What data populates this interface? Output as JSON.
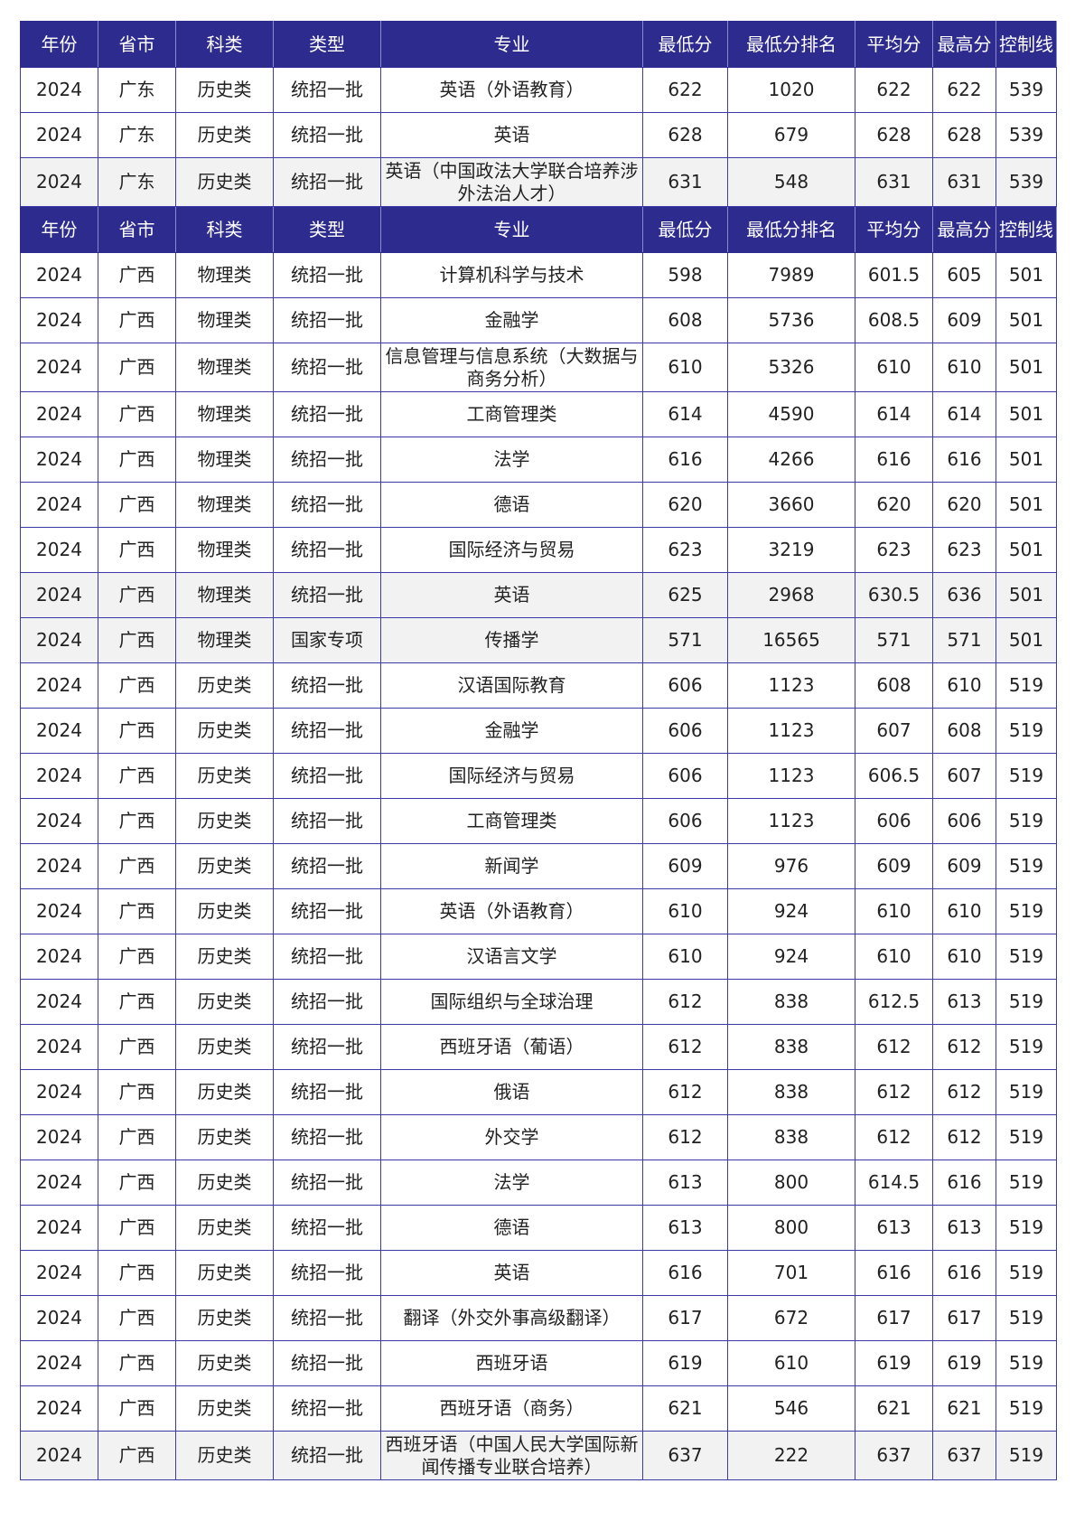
{
  "headers": [
    "年份",
    "省市",
    "科类",
    "类型",
    "专业",
    "最低分",
    "最低分排名",
    "平均分",
    "最高分",
    "控制线"
  ],
  "colors": {
    "header_bg": "#2e2b8f",
    "header_text": "#ffffff",
    "border": "#3b3aa6",
    "shaded_row": "#f2f2f2"
  },
  "sections": [
    {
      "rows": [
        {
          "year": "2024",
          "province": "广东",
          "subject": "历史类",
          "type": "统招一批",
          "major": "英语（外语教育）",
          "min_score": "622",
          "min_rank": "1020",
          "avg_score": "622",
          "max_score": "622",
          "control_line": "539",
          "shaded": false
        },
        {
          "year": "2024",
          "province": "广东",
          "subject": "历史类",
          "type": "统招一批",
          "major": "英语",
          "min_score": "628",
          "min_rank": "679",
          "avg_score": "628",
          "max_score": "628",
          "control_line": "539",
          "shaded": false
        },
        {
          "year": "2024",
          "province": "广东",
          "subject": "历史类",
          "type": "统招一批",
          "major": "英语（中国政法大学联合培养涉外法治人才）",
          "min_score": "631",
          "min_rank": "548",
          "avg_score": "631",
          "max_score": "631",
          "control_line": "539",
          "shaded": true
        }
      ]
    },
    {
      "rows": [
        {
          "year": "2024",
          "province": "广西",
          "subject": "物理类",
          "type": "统招一批",
          "major": "计算机科学与技术",
          "min_score": "598",
          "min_rank": "7989",
          "avg_score": "601.5",
          "max_score": "605",
          "control_line": "501",
          "shaded": false
        },
        {
          "year": "2024",
          "province": "广西",
          "subject": "物理类",
          "type": "统招一批",
          "major": "金融学",
          "min_score": "608",
          "min_rank": "5736",
          "avg_score": "608.5",
          "max_score": "609",
          "control_line": "501",
          "shaded": false
        },
        {
          "year": "2024",
          "province": "广西",
          "subject": "物理类",
          "type": "统招一批",
          "major": "信息管理与信息系统（大数据与商务分析）",
          "min_score": "610",
          "min_rank": "5326",
          "avg_score": "610",
          "max_score": "610",
          "control_line": "501",
          "shaded": false
        },
        {
          "year": "2024",
          "province": "广西",
          "subject": "物理类",
          "type": "统招一批",
          "major": "工商管理类",
          "min_score": "614",
          "min_rank": "4590",
          "avg_score": "614",
          "max_score": "614",
          "control_line": "501",
          "shaded": false
        },
        {
          "year": "2024",
          "province": "广西",
          "subject": "物理类",
          "type": "统招一批",
          "major": "法学",
          "min_score": "616",
          "min_rank": "4266",
          "avg_score": "616",
          "max_score": "616",
          "control_line": "501",
          "shaded": false
        },
        {
          "year": "2024",
          "province": "广西",
          "subject": "物理类",
          "type": "统招一批",
          "major": "德语",
          "min_score": "620",
          "min_rank": "3660",
          "avg_score": "620",
          "max_score": "620",
          "control_line": "501",
          "shaded": false
        },
        {
          "year": "2024",
          "province": "广西",
          "subject": "物理类",
          "type": "统招一批",
          "major": "国际经济与贸易",
          "min_score": "623",
          "min_rank": "3219",
          "avg_score": "623",
          "max_score": "623",
          "control_line": "501",
          "shaded": false
        },
        {
          "year": "2024",
          "province": "广西",
          "subject": "物理类",
          "type": "统招一批",
          "major": "英语",
          "min_score": "625",
          "min_rank": "2968",
          "avg_score": "630.5",
          "max_score": "636",
          "control_line": "501",
          "shaded": true
        },
        {
          "year": "2024",
          "province": "广西",
          "subject": "物理类",
          "type": "国家专项",
          "major": "传播学",
          "min_score": "571",
          "min_rank": "16565",
          "avg_score": "571",
          "max_score": "571",
          "control_line": "501",
          "shaded": true
        },
        {
          "year": "2024",
          "province": "广西",
          "subject": "历史类",
          "type": "统招一批",
          "major": "汉语国际教育",
          "min_score": "606",
          "min_rank": "1123",
          "avg_score": "608",
          "max_score": "610",
          "control_line": "519",
          "shaded": false
        },
        {
          "year": "2024",
          "province": "广西",
          "subject": "历史类",
          "type": "统招一批",
          "major": "金融学",
          "min_score": "606",
          "min_rank": "1123",
          "avg_score": "607",
          "max_score": "608",
          "control_line": "519",
          "shaded": false
        },
        {
          "year": "2024",
          "province": "广西",
          "subject": "历史类",
          "type": "统招一批",
          "major": "国际经济与贸易",
          "min_score": "606",
          "min_rank": "1123",
          "avg_score": "606.5",
          "max_score": "607",
          "control_line": "519",
          "shaded": false
        },
        {
          "year": "2024",
          "province": "广西",
          "subject": "历史类",
          "type": "统招一批",
          "major": "工商管理类",
          "min_score": "606",
          "min_rank": "1123",
          "avg_score": "606",
          "max_score": "606",
          "control_line": "519",
          "shaded": false
        },
        {
          "year": "2024",
          "province": "广西",
          "subject": "历史类",
          "type": "统招一批",
          "major": "新闻学",
          "min_score": "609",
          "min_rank": "976",
          "avg_score": "609",
          "max_score": "609",
          "control_line": "519",
          "shaded": false
        },
        {
          "year": "2024",
          "province": "广西",
          "subject": "历史类",
          "type": "统招一批",
          "major": "英语（外语教育）",
          "min_score": "610",
          "min_rank": "924",
          "avg_score": "610",
          "max_score": "610",
          "control_line": "519",
          "shaded": false
        },
        {
          "year": "2024",
          "province": "广西",
          "subject": "历史类",
          "type": "统招一批",
          "major": "汉语言文学",
          "min_score": "610",
          "min_rank": "924",
          "avg_score": "610",
          "max_score": "610",
          "control_line": "519",
          "shaded": false
        },
        {
          "year": "2024",
          "province": "广西",
          "subject": "历史类",
          "type": "统招一批",
          "major": "国际组织与全球治理",
          "min_score": "612",
          "min_rank": "838",
          "avg_score": "612.5",
          "max_score": "613",
          "control_line": "519",
          "shaded": false
        },
        {
          "year": "2024",
          "province": "广西",
          "subject": "历史类",
          "type": "统招一批",
          "major": "西班牙语（葡语）",
          "min_score": "612",
          "min_rank": "838",
          "avg_score": "612",
          "max_score": "612",
          "control_line": "519",
          "shaded": false
        },
        {
          "year": "2024",
          "province": "广西",
          "subject": "历史类",
          "type": "统招一批",
          "major": "俄语",
          "min_score": "612",
          "min_rank": "838",
          "avg_score": "612",
          "max_score": "612",
          "control_line": "519",
          "shaded": false
        },
        {
          "year": "2024",
          "province": "广西",
          "subject": "历史类",
          "type": "统招一批",
          "major": "外交学",
          "min_score": "612",
          "min_rank": "838",
          "avg_score": "612",
          "max_score": "612",
          "control_line": "519",
          "shaded": false
        },
        {
          "year": "2024",
          "province": "广西",
          "subject": "历史类",
          "type": "统招一批",
          "major": "法学",
          "min_score": "613",
          "min_rank": "800",
          "avg_score": "614.5",
          "max_score": "616",
          "control_line": "519",
          "shaded": false
        },
        {
          "year": "2024",
          "province": "广西",
          "subject": "历史类",
          "type": "统招一批",
          "major": "德语",
          "min_score": "613",
          "min_rank": "800",
          "avg_score": "613",
          "max_score": "613",
          "control_line": "519",
          "shaded": false
        },
        {
          "year": "2024",
          "province": "广西",
          "subject": "历史类",
          "type": "统招一批",
          "major": "英语",
          "min_score": "616",
          "min_rank": "701",
          "avg_score": "616",
          "max_score": "616",
          "control_line": "519",
          "shaded": false
        },
        {
          "year": "2024",
          "province": "广西",
          "subject": "历史类",
          "type": "统招一批",
          "major": "翻译（外交外事高级翻译）",
          "min_score": "617",
          "min_rank": "672",
          "avg_score": "617",
          "max_score": "617",
          "control_line": "519",
          "shaded": false
        },
        {
          "year": "2024",
          "province": "广西",
          "subject": "历史类",
          "type": "统招一批",
          "major": "西班牙语",
          "min_score": "619",
          "min_rank": "610",
          "avg_score": "619",
          "max_score": "619",
          "control_line": "519",
          "shaded": false
        },
        {
          "year": "2024",
          "province": "广西",
          "subject": "历史类",
          "type": "统招一批",
          "major": "西班牙语（商务）",
          "min_score": "621",
          "min_rank": "546",
          "avg_score": "621",
          "max_score": "621",
          "control_line": "519",
          "shaded": false
        },
        {
          "year": "2024",
          "province": "广西",
          "subject": "历史类",
          "type": "统招一批",
          "major": "西班牙语（中国人民大学国际新闻传播专业联合培养）",
          "min_score": "637",
          "min_rank": "222",
          "avg_score": "637",
          "max_score": "637",
          "control_line": "519",
          "shaded": true
        }
      ]
    }
  ]
}
